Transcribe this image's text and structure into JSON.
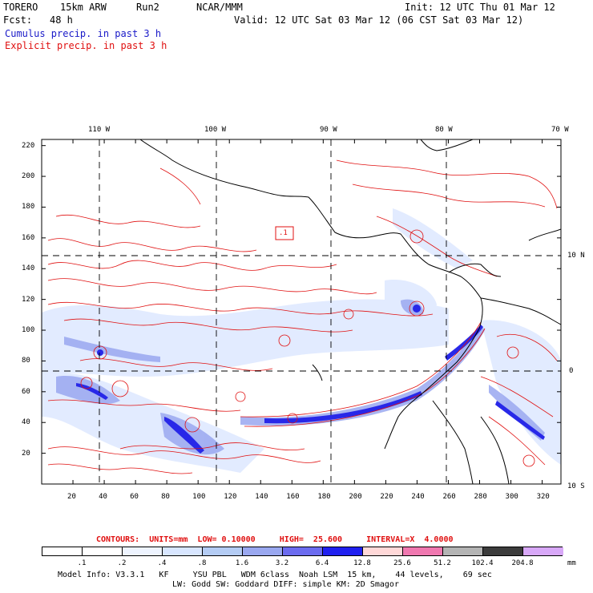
{
  "header": {
    "model": "TORERO",
    "resolution": "15km ARW",
    "run": "Run2",
    "org": "NCAR/MMM",
    "init": "Init: 12 UTC Thu 01 Mar 12",
    "fcst_label": "Fcst:",
    "fcst_value": "48 h",
    "valid": "Valid: 12 UTC Sat 03 Mar 12 (06 CST Sat 03 Mar 12)"
  },
  "legend_text": {
    "cumulus": "Cumulus precip. in past 3 h",
    "explicit": "Explicit precip. in past 3 h"
  },
  "map": {
    "lon_labels": [
      "110 W",
      "100 W",
      "90 W",
      "80 W",
      "70 W"
    ],
    "lat_labels": [
      "10 N",
      "0",
      "10 S"
    ],
    "x_ticks": [
      "20",
      "40",
      "60",
      "80",
      "100",
      "120",
      "140",
      "160",
      "180",
      "200",
      "220",
      "240",
      "260",
      "280",
      "300",
      "320"
    ],
    "y_ticks": [
      "20",
      "40",
      "60",
      "80",
      "100",
      "120",
      "140",
      "160",
      "180",
      "200",
      "220"
    ],
    "box_label": ".1"
  },
  "contour_info": "CONTOURS:  UNITS=mm  LOW= 0.10000     HIGH=  25.600     INTERVAL=X  4.0000",
  "colorbar": {
    "labels": [
      ".1",
      ".2",
      ".4",
      ".8",
      "1.6",
      "3.2",
      "6.4",
      "12.8",
      "25.6",
      "51.2",
      "102.4",
      "204.8"
    ],
    "colors": [
      "#ffffff",
      "#ffffff",
      "#eef4ff",
      "#d8e6ff",
      "#b4ccf4",
      "#9aa8f0",
      "#6c6cf0",
      "#2020f0",
      "#ffd8d8",
      "#f078b0",
      "#b4b4b4",
      "#3c3c3c",
      "#d8a8f8"
    ],
    "units": "mm"
  },
  "footer": {
    "line1": "Model Info: V3.3.1   KF     YSU PBL   WDM 6class  Noah LSM  15 km,    44 levels,    69 sec",
    "line2": "LW: Godd SW: Goddard DIFF: simple KM: 2D Smagor"
  }
}
